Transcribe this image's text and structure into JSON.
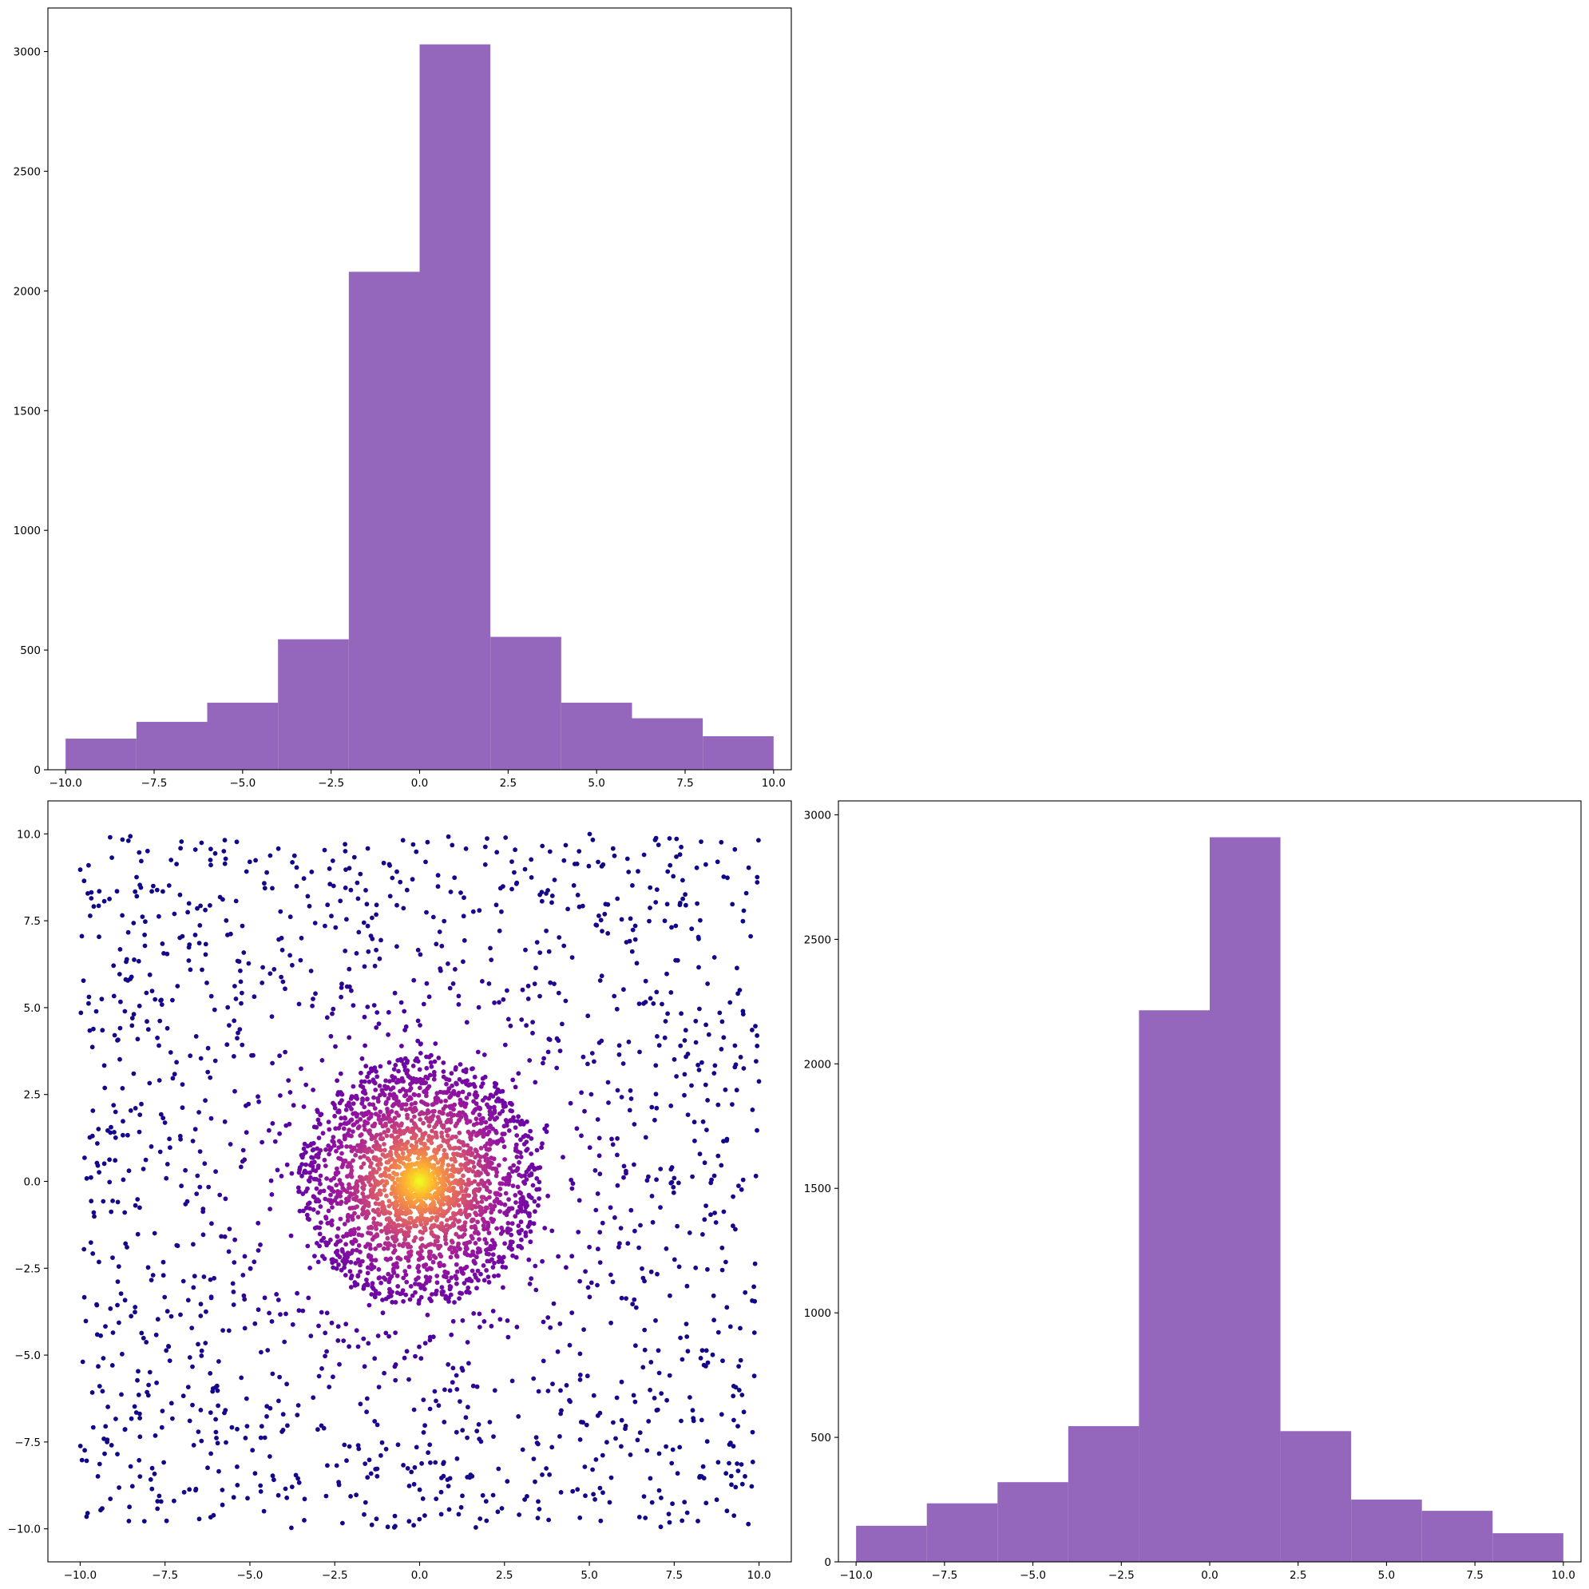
{
  "chart_data": [
    {
      "type": "bar",
      "panel": "top-left",
      "bin_edges": [
        -10,
        -8,
        -6,
        -4,
        -2,
        0,
        2,
        4,
        6,
        8,
        10
      ],
      "values": [
        130,
        200,
        280,
        545,
        2080,
        3030,
        555,
        280,
        215,
        140
      ],
      "color": "#9467bd",
      "xlim": [
        -10.5,
        10.5
      ],
      "ylim": [
        0,
        3182
      ],
      "xticks": [
        -10,
        -7.5,
        -5,
        -2.5,
        0,
        2.5,
        5,
        7.5,
        10
      ],
      "xtick_labels": [
        "−10.0",
        "−7.5",
        "−5.0",
        "−2.5",
        "0.0",
        "2.5",
        "5.0",
        "7.5",
        "10.0"
      ],
      "yticks": [
        0,
        500,
        1000,
        1500,
        2000,
        2500,
        3000
      ],
      "ytick_labels": [
        "0",
        "500",
        "1000",
        "1500",
        "2000",
        "2500",
        "3000"
      ],
      "title": "",
      "xlabel": "",
      "ylabel": "",
      "grid": false
    },
    {
      "type": "scatter",
      "panel": "bottom-left",
      "distribution": "density-colored mixture: concentrated cluster around (0, 0) within radius ~3.5 plus uniform background over [-10, 10] x [-10, 10]",
      "colormap": "plasma",
      "color_scale": [
        "#0d0887",
        "#5c01a6",
        "#9c179e",
        "#cc4778",
        "#ed7953",
        "#fdb42f",
        "#f0f921"
      ],
      "xlim": [
        -10.95,
        10.95
      ],
      "ylim": [
        -10.95,
        10.95
      ],
      "xticks": [
        -10,
        -7.5,
        -5,
        -2.5,
        0,
        2.5,
        5,
        7.5,
        10
      ],
      "xtick_labels": [
        "−10.0",
        "−7.5",
        "−5.0",
        "−2.5",
        "0.0",
        "2.5",
        "5.0",
        "7.5",
        "10.0"
      ],
      "yticks": [
        -10,
        -7.5,
        -5,
        -2.5,
        0,
        2.5,
        5,
        7.5,
        10
      ],
      "ytick_labels": [
        "−10.0",
        "−7.5",
        "−5.0",
        "−2.5",
        "0.0",
        "2.5",
        "5.0",
        "7.5",
        "10.0"
      ],
      "title": "",
      "xlabel": "",
      "ylabel": "",
      "grid": false
    },
    {
      "type": "bar",
      "panel": "bottom-right",
      "bin_edges": [
        -10,
        -8,
        -6,
        -4,
        -2,
        0,
        2,
        4,
        6,
        8,
        10
      ],
      "values": [
        145,
        235,
        320,
        545,
        2215,
        2910,
        525,
        250,
        205,
        115
      ],
      "color": "#9467bd",
      "xlim": [
        -10.5,
        10.5
      ],
      "ylim": [
        0,
        3056
      ],
      "xticks": [
        -10,
        -7.5,
        -5,
        -2.5,
        0,
        2.5,
        5,
        7.5,
        10
      ],
      "xtick_labels": [
        "−10.0",
        "−7.5",
        "−5.0",
        "−2.5",
        "0.0",
        "2.5",
        "5.0",
        "7.5",
        "10.0"
      ],
      "yticks": [
        0,
        500,
        1000,
        1500,
        2000,
        2500,
        3000
      ],
      "ytick_labels": [
        "0",
        "500",
        "1000",
        "1500",
        "2000",
        "2500",
        "3000"
      ],
      "title": "",
      "xlabel": "",
      "ylabel": "",
      "grid": false
    }
  ]
}
